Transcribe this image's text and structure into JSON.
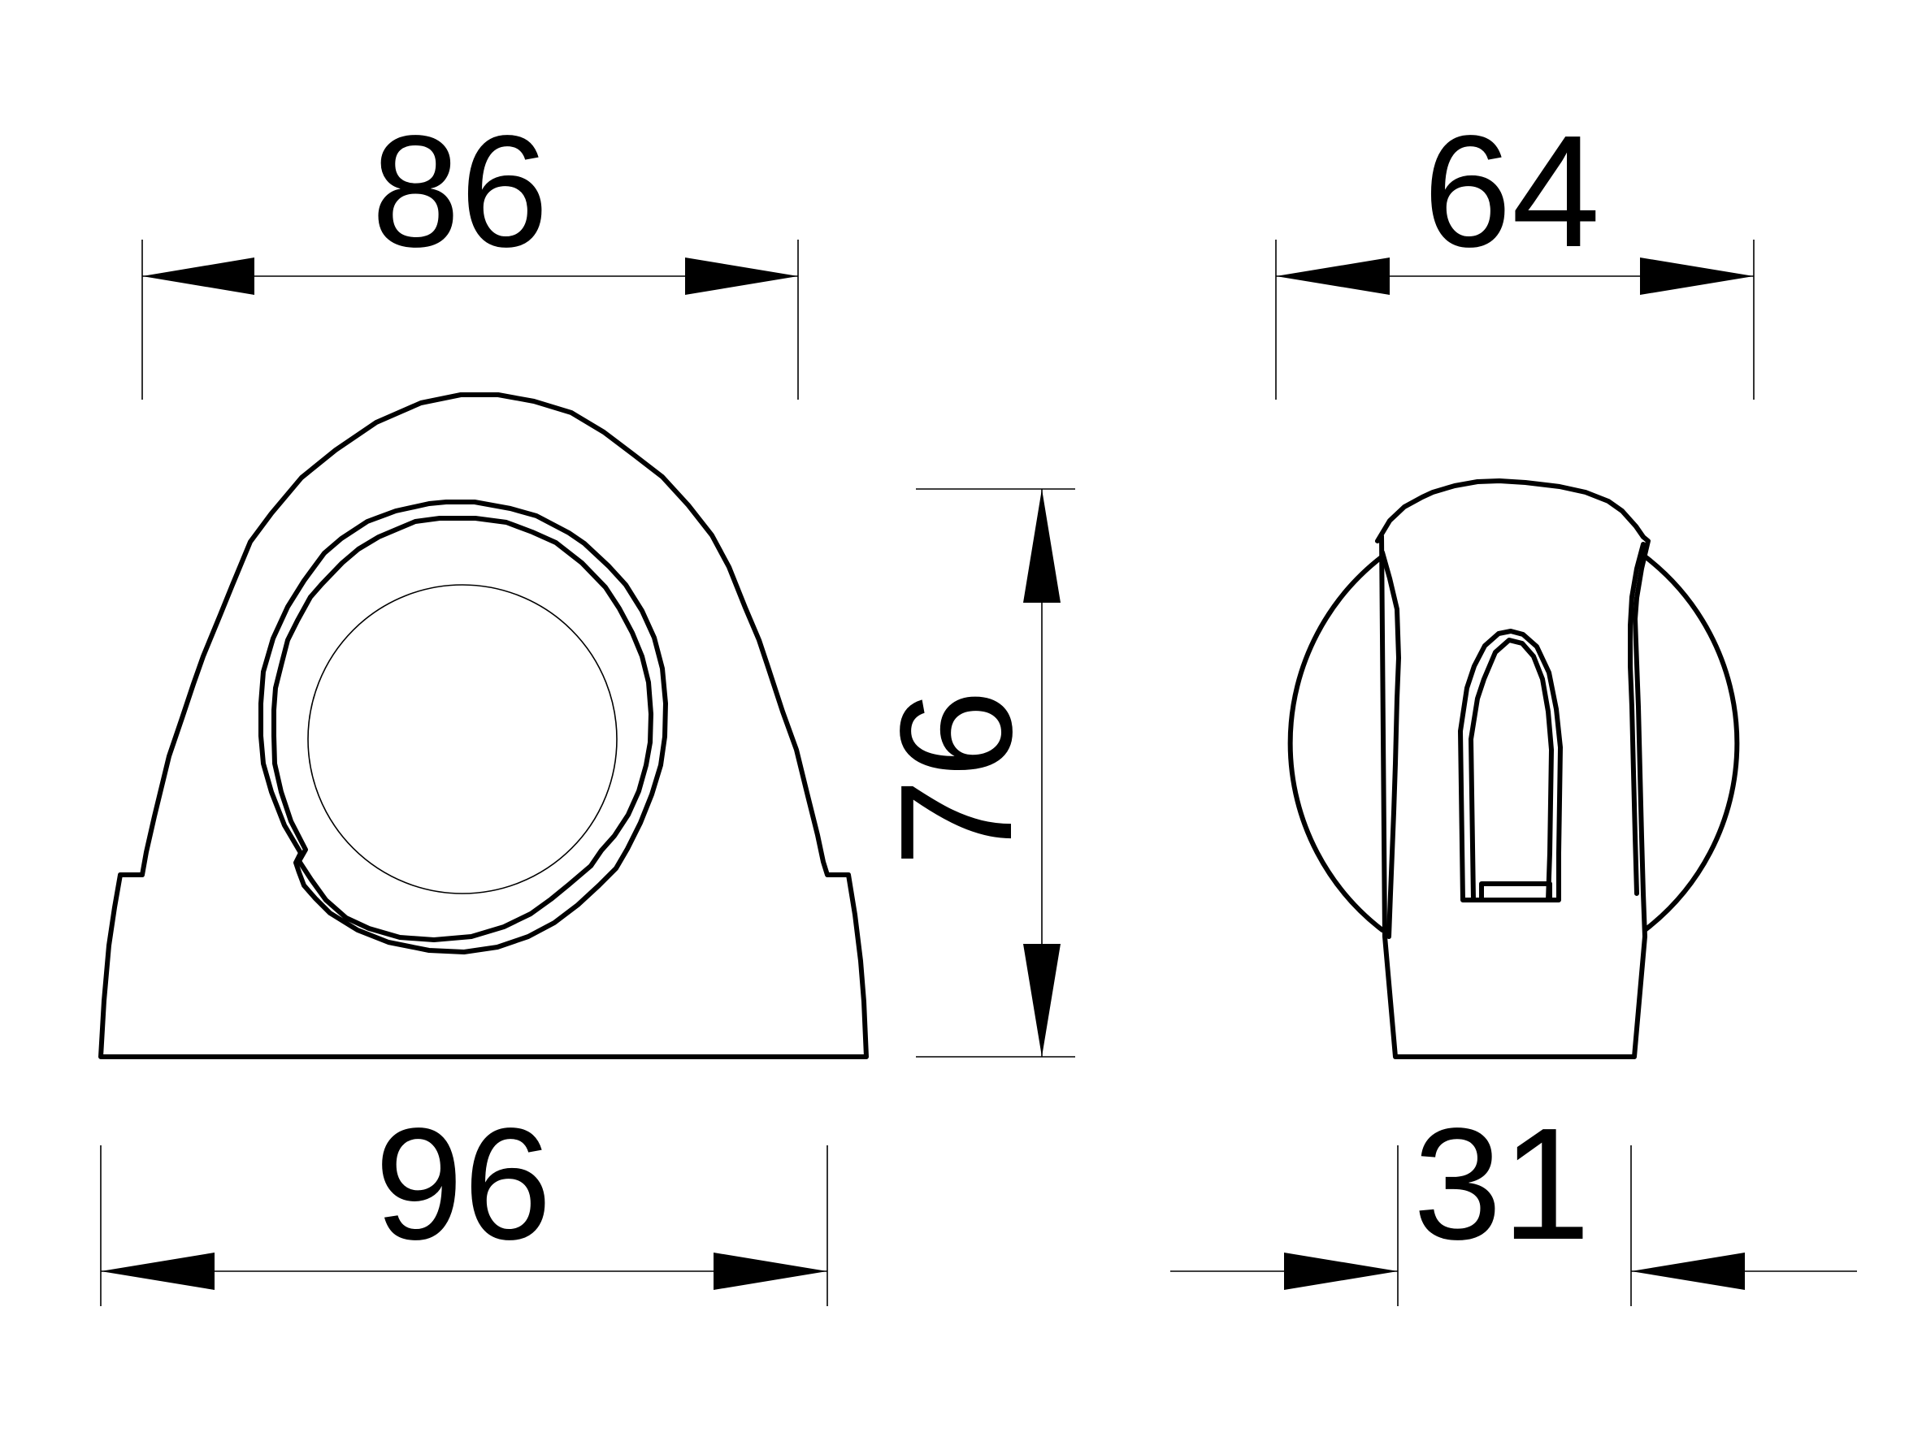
{
  "dimensions": {
    "front_top_width": "86",
    "side_top_width": "64",
    "height": "76",
    "front_bottom_width": "96",
    "side_bottom_width": "31"
  }
}
